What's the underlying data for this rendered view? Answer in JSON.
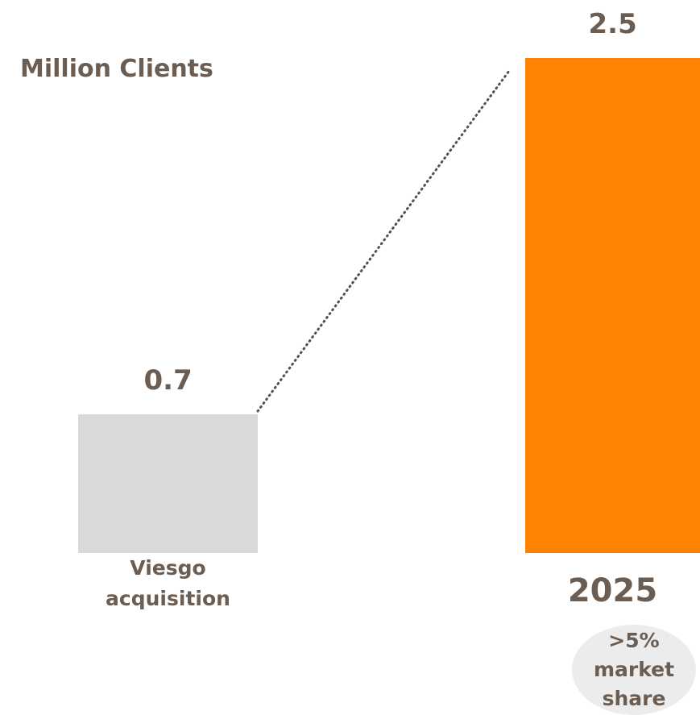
{
  "chart_data": {
    "type": "bar",
    "y_label": "Million Clients",
    "categories": [
      "Viesgo acquisition",
      "2025"
    ],
    "values": [
      0.7,
      2.5
    ],
    "colors": [
      "#d9d9d9",
      "#ff8200"
    ],
    "ylim": [
      0,
      2.5
    ],
    "annotation": ">5% market share"
  }
}
